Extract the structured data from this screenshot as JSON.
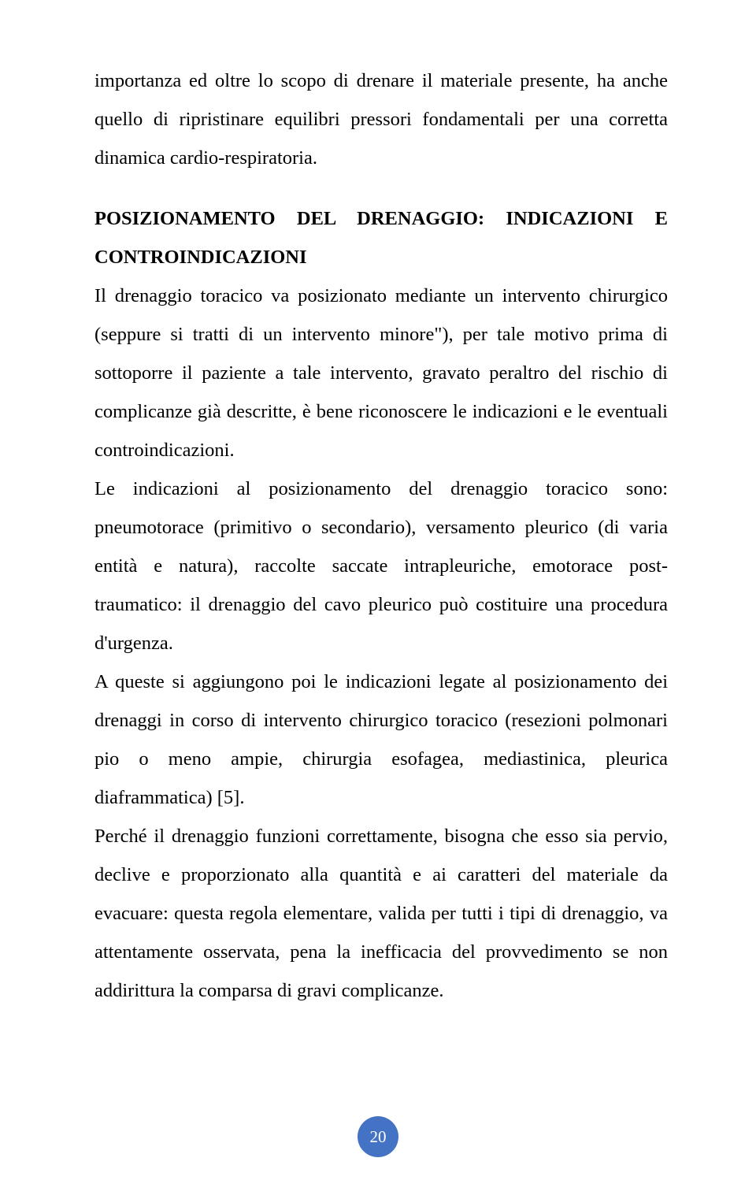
{
  "para1": "importanza ed oltre lo scopo di drenare il materiale presente, ha anche quello di ripristinare equilibri pressori fondamentali per una corretta dinamica cardio-respiratoria.",
  "heading": "POSIZIONAMENTO DEL DRENAGGIO: INDICAZIONI E CONTROINDICAZIONI",
  "para2": "Il drenaggio toracico va posizionato mediante un intervento chirurgico (seppure si tratti di un intervento minore\"), per tale motivo prima di sottoporre il paziente a tale intervento, gravato peraltro del rischio di complicanze già descritte, è bene riconoscere le indicazioni e le eventuali controindicazioni.",
  "para3": "Le indicazioni al posizionamento del drenaggio toracico sono: pneumotorace (primitivo o secondario), versamento pleurico (di varia entità e natura), raccolte saccate intrapleuriche, emotorace post-traumatico: il drenaggio del cavo pleurico può costituire una procedura d'urgenza.",
  "para4": "A queste si aggiungono poi le indicazioni legate al posizionamento dei drenaggi in corso di intervento chirurgico toracico (resezioni polmonari pio o meno ampie, chirurgia esofagea, mediastinica, pleurica diaframmatica) [5].",
  "para5": "Perché il drenaggio funzioni correttamente, bisogna che esso sia pervio, declive e proporzionato alla quantità e ai caratteri del materiale da evacuare: questa regola elementare, valida per tutti i tipi di drenaggio, va attentamente osservata, pena la inefficacia del provvedimento se non addirittura la comparsa di gravi complicanze.",
  "pageNumber": "20",
  "colors": {
    "text": "#000000",
    "circleBg": "#4472c4",
    "circleText": "#ffffff",
    "pageBg": "#ffffff"
  }
}
